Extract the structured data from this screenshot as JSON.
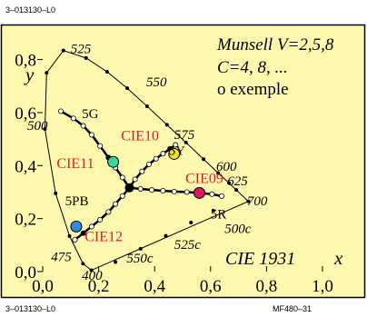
{
  "header_code": "3–013130–L0",
  "footer_left_code": "3–013130–L0",
  "footer_right_code": "MF480–31",
  "colors": {
    "panel_bg": "#fff9b0",
    "ink": "#000000",
    "label_red": "#e0192d",
    "cie10_yellow": "#f2e313",
    "cie11_green": "#3fd49a",
    "cie09_red": "#e0195e",
    "cie12_blue": "#2a8fe4"
  },
  "chart_data": {
    "type": "scatter",
    "title": "CIE 1931",
    "xlabel": "x",
    "ylabel": "y",
    "xlim": [
      0.0,
      1.0
    ],
    "ylim": [
      0.0,
      0.85
    ],
    "x_ticks": [
      {
        "value": 0.0,
        "label": "0,0"
      },
      {
        "value": 0.2,
        "label": "0,2"
      },
      {
        "value": 0.4,
        "label": "0,4"
      },
      {
        "value": 0.6,
        "label": "0,6"
      },
      {
        "value": 0.8,
        "label": "0,8"
      },
      {
        "value": 1.0,
        "label": "1,0"
      }
    ],
    "y_ticks": [
      {
        "value": 0.0,
        "label": "0,0"
      },
      {
        "value": 0.2,
        "label": "0,2"
      },
      {
        "value": 0.4,
        "label": "0,4"
      },
      {
        "value": 0.6,
        "label": "0,6"
      },
      {
        "value": 0.8,
        "label": "0,8"
      }
    ],
    "legend_text": [
      "Munsell V=2,5,8",
      "C=4, 8, ...",
      "o exemple"
    ],
    "spectral_locus": [
      [
        0.174,
        0.005
      ],
      [
        0.144,
        0.03
      ],
      [
        0.096,
        0.134
      ],
      [
        0.046,
        0.295
      ],
      [
        0.008,
        0.538
      ],
      [
        0.014,
        0.75
      ],
      [
        0.074,
        0.834
      ],
      [
        0.155,
        0.806
      ],
      [
        0.23,
        0.754
      ],
      [
        0.302,
        0.692
      ],
      [
        0.373,
        0.624
      ],
      [
        0.444,
        0.554
      ],
      [
        0.512,
        0.487
      ],
      [
        0.575,
        0.424
      ],
      [
        0.627,
        0.372
      ],
      [
        0.666,
        0.334
      ],
      [
        0.692,
        0.308
      ],
      [
        0.735,
        0.265
      ]
    ],
    "wavelength_labels": [
      {
        "text": "525",
        "x": 0.1,
        "y": 0.825
      },
      {
        "text": "550",
        "x": 0.37,
        "y": 0.7
      },
      {
        "text": "575",
        "x": 0.47,
        "y": 0.5
      },
      {
        "text": "600",
        "x": 0.62,
        "y": 0.38
      },
      {
        "text": "625",
        "x": 0.66,
        "y": 0.325
      },
      {
        "text": "700",
        "x": 0.73,
        "y": 0.25
      },
      {
        "text": "500",
        "x": -0.055,
        "y": 0.535
      },
      {
        "text": "475",
        "x": 0.03,
        "y": 0.04
      },
      {
        "text": "400",
        "x": 0.14,
        "y": -0.03
      }
    ],
    "purple_line_labels": [
      {
        "text": "500c",
        "x": 0.65,
        "y": 0.145
      },
      {
        "text": "525c",
        "x": 0.47,
        "y": 0.085
      },
      {
        "text": "550c",
        "x": 0.3,
        "y": 0.035
      }
    ],
    "purple_line_dots": [
      [
        0.61,
        0.23
      ],
      [
        0.53,
        0.185
      ],
      [
        0.44,
        0.135
      ],
      [
        0.35,
        0.086
      ],
      [
        0.26,
        0.036
      ]
    ],
    "hue_labels": [
      {
        "text": "5G",
        "x": 0.14,
        "y": 0.58
      },
      {
        "text": "5Y",
        "x": 0.45,
        "y": 0.44
      },
      {
        "text": "5R",
        "x": 0.6,
        "y": 0.2
      },
      {
        "text": "5PB",
        "x": 0.08,
        "y": 0.25
      }
    ],
    "white_point": [
      0.31,
      0.316
    ],
    "hue_lines": [
      {
        "name": "5G",
        "points": [
          [
            0.31,
            0.316
          ],
          [
            0.285,
            0.355
          ],
          [
            0.26,
            0.392
          ],
          [
            0.235,
            0.43
          ],
          [
            0.205,
            0.474
          ],
          [
            0.175,
            0.516
          ],
          [
            0.145,
            0.55
          ],
          [
            0.11,
            0.578
          ],
          [
            0.065,
            0.605
          ]
        ],
        "mark_index": 3
      },
      {
        "name": "5Y",
        "points": [
          [
            0.31,
            0.316
          ],
          [
            0.33,
            0.348
          ],
          [
            0.355,
            0.378
          ],
          [
            0.38,
            0.405
          ],
          [
            0.405,
            0.426
          ],
          [
            0.43,
            0.445
          ],
          [
            0.455,
            0.463
          ],
          [
            0.475,
            0.478
          ]
        ],
        "mark_index": 6
      },
      {
        "name": "5R",
        "points": [
          [
            0.31,
            0.316
          ],
          [
            0.35,
            0.312
          ],
          [
            0.39,
            0.308
          ],
          [
            0.43,
            0.305
          ],
          [
            0.47,
            0.302
          ],
          [
            0.515,
            0.3
          ],
          [
            0.56,
            0.297
          ],
          [
            0.605,
            0.292
          ],
          [
            0.64,
            0.285
          ]
        ],
        "mark_index": 6
      },
      {
        "name": "5PB",
        "points": [
          [
            0.31,
            0.316
          ],
          [
            0.285,
            0.285
          ],
          [
            0.26,
            0.255
          ],
          [
            0.235,
            0.225
          ],
          [
            0.205,
            0.196
          ],
          [
            0.175,
            0.17
          ],
          [
            0.145,
            0.145
          ],
          [
            0.115,
            0.12
          ]
        ],
        "mark_index": 6
      }
    ],
    "example_points": [
      {
        "label": "CIE10",
        "x": 0.47,
        "y": 0.444,
        "color": "#f2e313",
        "label_x": 0.28,
        "label_y": 0.495
      },
      {
        "label": "CIE11",
        "x": 0.252,
        "y": 0.414,
        "color": "#3fd49a",
        "label_x": 0.05,
        "label_y": 0.39
      },
      {
        "label": "CIE09",
        "x": 0.56,
        "y": 0.297,
        "color": "#e0195e",
        "label_x": 0.51,
        "label_y": 0.335
      },
      {
        "label": "CIE12",
        "x": 0.12,
        "y": 0.17,
        "color": "#2a8fe4",
        "label_x": 0.15,
        "label_y": 0.115
      }
    ]
  }
}
